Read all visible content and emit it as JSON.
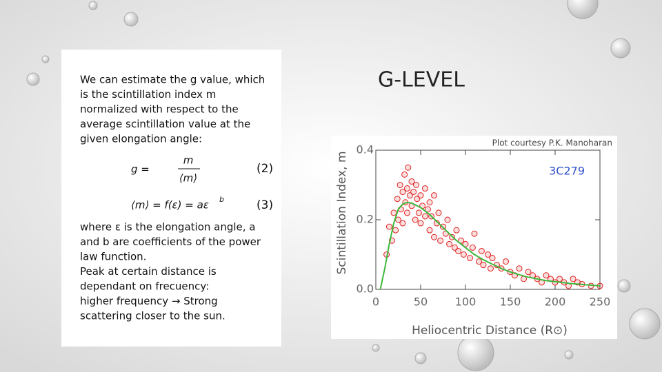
{
  "slide": {
    "title": "G-LEVEL",
    "intro": [
      "We can estimate the g value, which",
      "is the scintillation index m",
      "normalized with respect to the",
      "average scintillation value at the",
      "given elongation angle:"
    ],
    "eq1": {
      "lhs": "g =",
      "num": "m",
      "den": "⟨m⟩",
      "tag": "(2)"
    },
    "eq2": {
      "body": "⟨m⟩ = f(ε) = aε",
      "sup": "b",
      "tag": "(3)"
    },
    "outro": [
      "where ε is the elongation angle, a",
      "and b are coefficients of the power",
      "law function.",
      "Peak at certain distance is",
      "dependant on frecuency:",
      "higher frequency → Strong",
      "scattering closer to the sun."
    ]
  },
  "chart_data": {
    "type": "scatter",
    "title": "3C279",
    "annotation": "Plot courtesy P.K. Manoharan",
    "xlabel": "Heliocentric Distance (R⊙)",
    "ylabel": "Scintillation Index, m",
    "xlim": [
      0,
      250
    ],
    "ylim": [
      0,
      0.4
    ],
    "xticks": [
      0,
      50,
      100,
      150,
      200,
      250
    ],
    "yticks": [
      {
        "value": 0,
        "label": "0.0"
      },
      0.2,
      0.4
    ],
    "series": [
      {
        "type": "scatter",
        "color": "#e02020",
        "x": [
          12,
          15,
          18,
          20,
          22,
          24,
          25,
          27,
          28,
          30,
          30,
          32,
          33,
          35,
          35,
          36,
          38,
          40,
          40,
          42,
          44,
          45,
          46,
          48,
          50,
          50,
          52,
          55,
          55,
          58,
          60,
          60,
          62,
          65,
          65,
          68,
          70,
          72,
          75,
          78,
          80,
          82,
          85,
          88,
          90,
          92,
          95,
          98,
          100,
          105,
          108,
          110,
          115,
          118,
          120,
          125,
          128,
          130,
          135,
          140,
          145,
          150,
          155,
          160,
          165,
          170,
          175,
          180,
          185,
          190,
          195,
          200,
          205,
          210,
          215,
          220,
          225,
          230,
          240,
          250
        ],
        "values": [
          0.1,
          0.18,
          0.14,
          0.22,
          0.17,
          0.26,
          0.2,
          0.3,
          0.23,
          0.28,
          0.19,
          0.33,
          0.25,
          0.29,
          0.22,
          0.35,
          0.27,
          0.31,
          0.24,
          0.28,
          0.2,
          0.3,
          0.26,
          0.22,
          0.27,
          0.19,
          0.24,
          0.29,
          0.21,
          0.23,
          0.25,
          0.17,
          0.21,
          0.27,
          0.15,
          0.19,
          0.22,
          0.14,
          0.18,
          0.16,
          0.2,
          0.13,
          0.15,
          0.12,
          0.17,
          0.11,
          0.14,
          0.1,
          0.13,
          0.09,
          0.12,
          0.16,
          0.08,
          0.11,
          0.07,
          0.1,
          0.06,
          0.09,
          0.07,
          0.06,
          0.08,
          0.05,
          0.04,
          0.06,
          0.03,
          0.05,
          0.04,
          0.03,
          0.02,
          0.04,
          0.03,
          0.02,
          0.03,
          0.02,
          0.01,
          0.03,
          0.02,
          0.015,
          0.01,
          0.01
        ]
      },
      {
        "type": "line",
        "color": "#3cb83c",
        "x": [
          5,
          10,
          15,
          20,
          25,
          30,
          35,
          40,
          50,
          60,
          70,
          80,
          90,
          100,
          110,
          120,
          130,
          140,
          150,
          160,
          170,
          180,
          190,
          200,
          210,
          220,
          230,
          240,
          250
        ],
        "values": [
          0,
          0.06,
          0.13,
          0.19,
          0.23,
          0.245,
          0.25,
          0.248,
          0.235,
          0.215,
          0.19,
          0.165,
          0.14,
          0.12,
          0.1,
          0.085,
          0.072,
          0.06,
          0.05,
          0.042,
          0.035,
          0.03,
          0.025,
          0.022,
          0.019,
          0.016,
          0.014,
          0.012,
          0.01
        ]
      }
    ]
  }
}
